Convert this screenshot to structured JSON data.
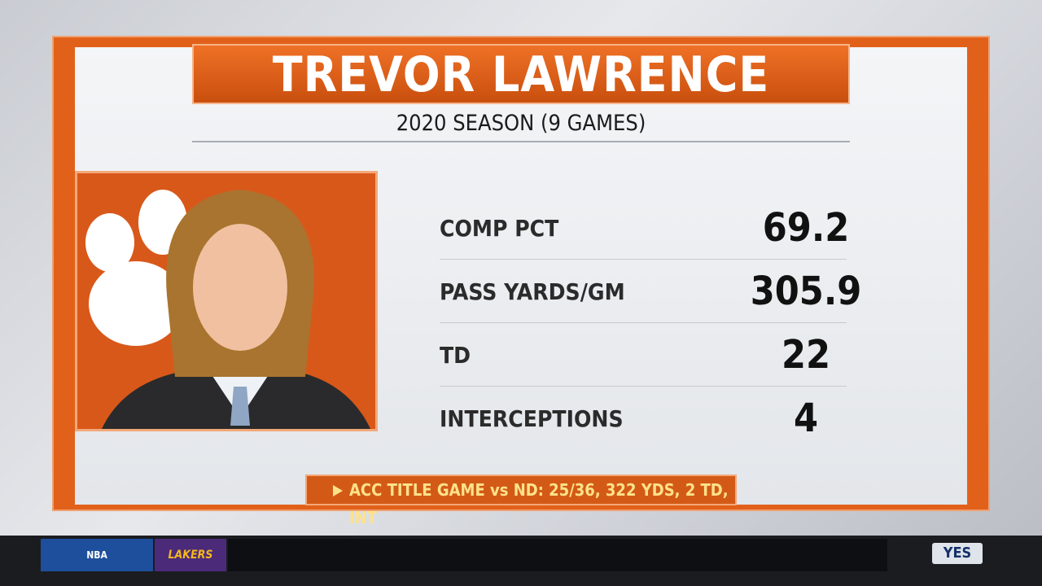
{
  "header": {
    "title": "TREVOR LAWRENCE",
    "subtitle": "2020 SEASON (9 GAMES)"
  },
  "stats": [
    {
      "label": "COMP PCT",
      "value": "69.2"
    },
    {
      "label": "PASS YARDS/GM",
      "value": "305.9"
    },
    {
      "label": "TD",
      "value": "22"
    },
    {
      "label": "INTERCEPTIONS",
      "value": "4"
    }
  ],
  "footer": {
    "note": "ACC TITLE GAME vs ND: 25/36, 322 YDS, 2 TD, INT"
  },
  "ticker": {
    "league": "NBA",
    "team": "LAKERS",
    "network": "YES"
  }
}
